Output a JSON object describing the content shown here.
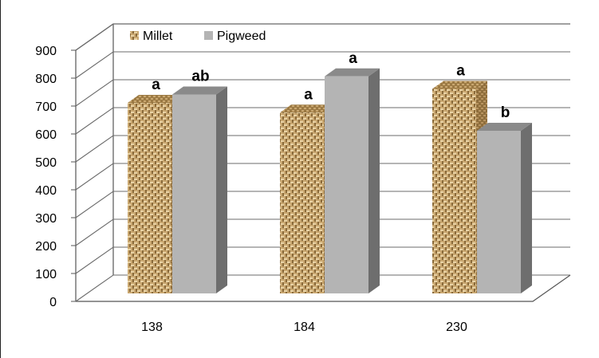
{
  "chart_data": {
    "type": "bar",
    "categories": [
      "138",
      "184",
      "230"
    ],
    "series": [
      {
        "name": "Millet",
        "values": [
          740,
          705,
          790
        ],
        "letters": [
          "a",
          "a",
          "a"
        ],
        "color": "#c8a46a"
      },
      {
        "name": "Pigweed",
        "values": [
          770,
          835,
          640
        ],
        "letters": [
          "ab",
          "a",
          "b"
        ],
        "color": "#b4b4b4"
      }
    ],
    "ylim": [
      0,
      900
    ],
    "yticks": [
      0,
      100,
      200,
      300,
      400,
      500,
      600,
      700,
      800,
      900
    ],
    "grid": true,
    "legend": "top-left",
    "style": "3d-column"
  }
}
